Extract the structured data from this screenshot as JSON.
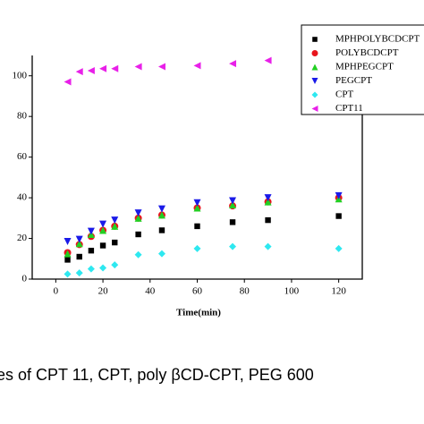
{
  "chart_data": {
    "type": "scatter",
    "x_label": "Time(min)",
    "caption": "es of CPT 11, CPT, poly βCD-CPT, PEG 600",
    "x": [
      5,
      10,
      15,
      20,
      25,
      35,
      45,
      60,
      75,
      90,
      120
    ],
    "xlim": [
      -10,
      130
    ],
    "xticks": [
      0,
      20,
      40,
      60,
      80,
      100,
      120
    ],
    "ylim": [
      0,
      110
    ],
    "yticks": [
      0,
      20,
      40,
      60,
      80,
      100
    ],
    "series": [
      {
        "name": "MPHPOLYBCDCPT",
        "color": "#000000",
        "marker": "square",
        "values": [
          9.5,
          11,
          14,
          16.5,
          18,
          22,
          24,
          26,
          28,
          29,
          31
        ]
      },
      {
        "name": "POLYBCDCPT",
        "color": "#e8141c",
        "marker": "circle",
        "values": [
          13,
          17,
          21,
          24,
          26,
          30,
          31.5,
          35,
          36,
          38,
          40
        ]
      },
      {
        "name": "MPHPEGCPT",
        "color": "#22d022",
        "marker": "triangle-up",
        "values": [
          12.5,
          17.5,
          22,
          24,
          26,
          30,
          31.5,
          35,
          36.5,
          38,
          39.5
        ]
      },
      {
        "name": "PEGCPT",
        "color": "#1a1ae8",
        "marker": "triangle-down",
        "values": [
          18.5,
          19.5,
          23.5,
          27,
          29,
          32.5,
          34.5,
          37.5,
          38.5,
          40,
          41
        ]
      },
      {
        "name": "CPT",
        "color": "#2ee8f0",
        "marker": "diamond",
        "values": [
          2.5,
          3,
          5,
          5.5,
          7,
          12,
          12.5,
          15,
          16,
          16,
          15
        ]
      },
      {
        "name": "CPT11",
        "color": "#e820e8",
        "marker": "triangle-left",
        "values": [
          97,
          102,
          102.5,
          103.5,
          103.5,
          104.5,
          104.5,
          105,
          106,
          107.5,
          null
        ]
      }
    ]
  }
}
